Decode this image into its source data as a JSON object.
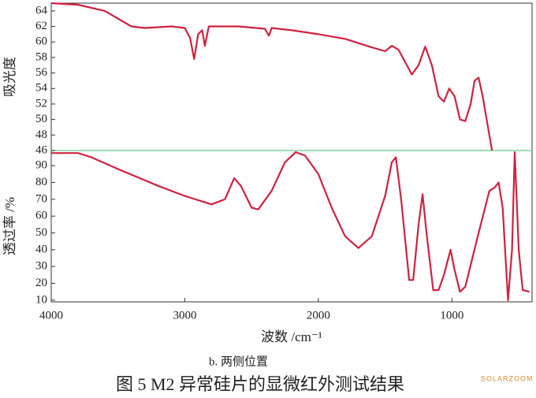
{
  "chart_data": [
    {
      "type": "line",
      "ylabel": "吸光度",
      "x": [
        4000,
        3800,
        3600,
        3400,
        3300,
        3100,
        3000,
        2960,
        2930,
        2900,
        2870,
        2850,
        2820,
        2600,
        2400,
        2370,
        2350,
        2200,
        2000,
        1800,
        1600,
        1500,
        1450,
        1400,
        1300,
        1250,
        1200,
        1150,
        1100,
        1060,
        1020,
        980,
        940,
        900,
        860,
        830,
        800,
        770,
        730,
        700
      ],
      "series": [
        {
          "color": "#d0213f",
          "values": [
            65,
            64.8,
            64,
            62,
            61.8,
            62,
            61.8,
            60.5,
            57.8,
            61,
            61.5,
            59.5,
            62,
            62,
            61.7,
            60.8,
            61.8,
            61.5,
            61,
            60.4,
            59.3,
            58.8,
            59.5,
            59,
            55.8,
            57,
            59.4,
            57,
            53,
            52.3,
            54,
            53,
            50,
            49.8,
            52,
            55,
            55.4,
            53,
            49,
            46
          ]
        }
      ],
      "xlim": [
        4000,
        400
      ],
      "ylim": [
        46,
        65
      ],
      "yticks": [
        46,
        48,
        50,
        52,
        54,
        56,
        58,
        60,
        62,
        64
      ]
    },
    {
      "type": "line",
      "ylabel": "透过率 /%",
      "xlabel": "波数 /cm⁻¹",
      "x": [
        4000,
        3800,
        3700,
        3500,
        3200,
        3000,
        2800,
        2700,
        2630,
        2580,
        2500,
        2450,
        2350,
        2250,
        2170,
        2100,
        2000,
        1900,
        1800,
        1700,
        1600,
        1500,
        1450,
        1420,
        1380,
        1320,
        1290,
        1250,
        1220,
        1190,
        1140,
        1100,
        1060,
        1010,
        980,
        940,
        900,
        800,
        720,
        680,
        650,
        620,
        580,
        550,
        530,
        500,
        470,
        420
      ],
      "series": [
        {
          "color": "#d0213f",
          "values": [
            97.5,
            97.5,
            95,
            88,
            78,
            72,
            67,
            70,
            82.5,
            78,
            65,
            64,
            75,
            92,
            98,
            96,
            85,
            65,
            48,
            41,
            48,
            72,
            92,
            95,
            70,
            22,
            22,
            55,
            73,
            50,
            16,
            16,
            25,
            40,
            28,
            15,
            18,
            50,
            75,
            77,
            80,
            65,
            10,
            40,
            98,
            40,
            16,
            15
          ]
        }
      ],
      "xlim": [
        4000,
        400
      ],
      "xticks": [
        4000,
        3000,
        2000,
        1000
      ],
      "ylim": [
        9,
        99
      ],
      "yticks": [
        10,
        20,
        30,
        40,
        50,
        60,
        70,
        80,
        90
      ]
    }
  ],
  "subcaption": "b. 两侧位置",
  "caption": "图 5  M2 异常硅片的显微红外测试结果",
  "watermark": "SOLARZOOM"
}
